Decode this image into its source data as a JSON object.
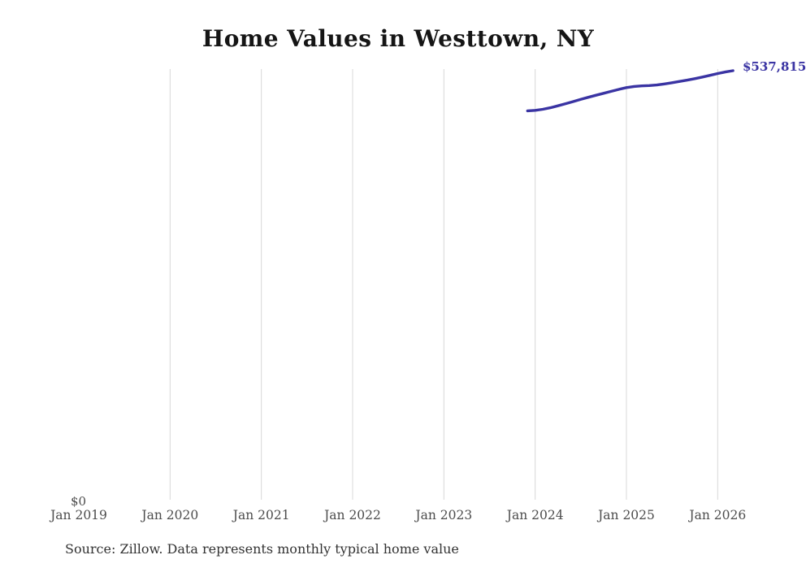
{
  "title": "Home Values in Westtown, NY",
  "source_note": "Source: Zillow. Data represents monthly typical home value",
  "y_axis": {
    "zero_label": "$0"
  },
  "x_axis": {
    "labels": [
      "Jan 2019",
      "Jan 2020",
      "Jan 2021",
      "Jan 2022",
      "Jan 2023",
      "Jan 2024",
      "Jan 2025",
      "Jan 2026"
    ]
  },
  "end_value_label": "$537,815",
  "colors": {
    "line": "#3a34a3",
    "end_label": "#3a34a3",
    "grid": "#d8d8d8",
    "title": "#151515",
    "axis_text": "#4c4c4c",
    "source_text": "#323232",
    "background": "#ffffff"
  },
  "chart_data": {
    "type": "line",
    "title": "Home Values in Westtown, NY",
    "xlabel": "",
    "ylabel": "",
    "ylim": [
      0,
      537815
    ],
    "grid": "vertical-only",
    "legend": "none",
    "x": [
      "Dec 2023",
      "Jan 2024",
      "Feb 2024",
      "Mar 2024",
      "Apr 2024",
      "May 2024",
      "Jun 2024",
      "Jul 2024",
      "Aug 2024",
      "Sep 2024",
      "Oct 2024",
      "Nov 2024",
      "Dec 2024",
      "Jan 2025",
      "Feb 2025",
      "Mar 2025",
      "Apr 2025",
      "May 2025",
      "Jun 2025",
      "Jul 2025",
      "Aug 2025",
      "Sep 2025",
      "Oct 2025",
      "Nov 2025",
      "Dec 2025",
      "Jan 2026",
      "Feb 2026",
      "Mar 2026"
    ],
    "series": [
      {
        "name": "Monthly typical home value",
        "values": [
          488000,
          488600,
          489900,
          491800,
          494200,
          496800,
          499500,
          502200,
          504800,
          507300,
          509800,
          512200,
          514600,
          516800,
          518200,
          518900,
          519400,
          520100,
          521400,
          522900,
          524500,
          526100,
          527900,
          529900,
          532100,
          534300,
          536200,
          537815
        ]
      }
    ],
    "annotations": [
      {
        "text": "$537,815",
        "attached_to": "last-point"
      }
    ]
  }
}
